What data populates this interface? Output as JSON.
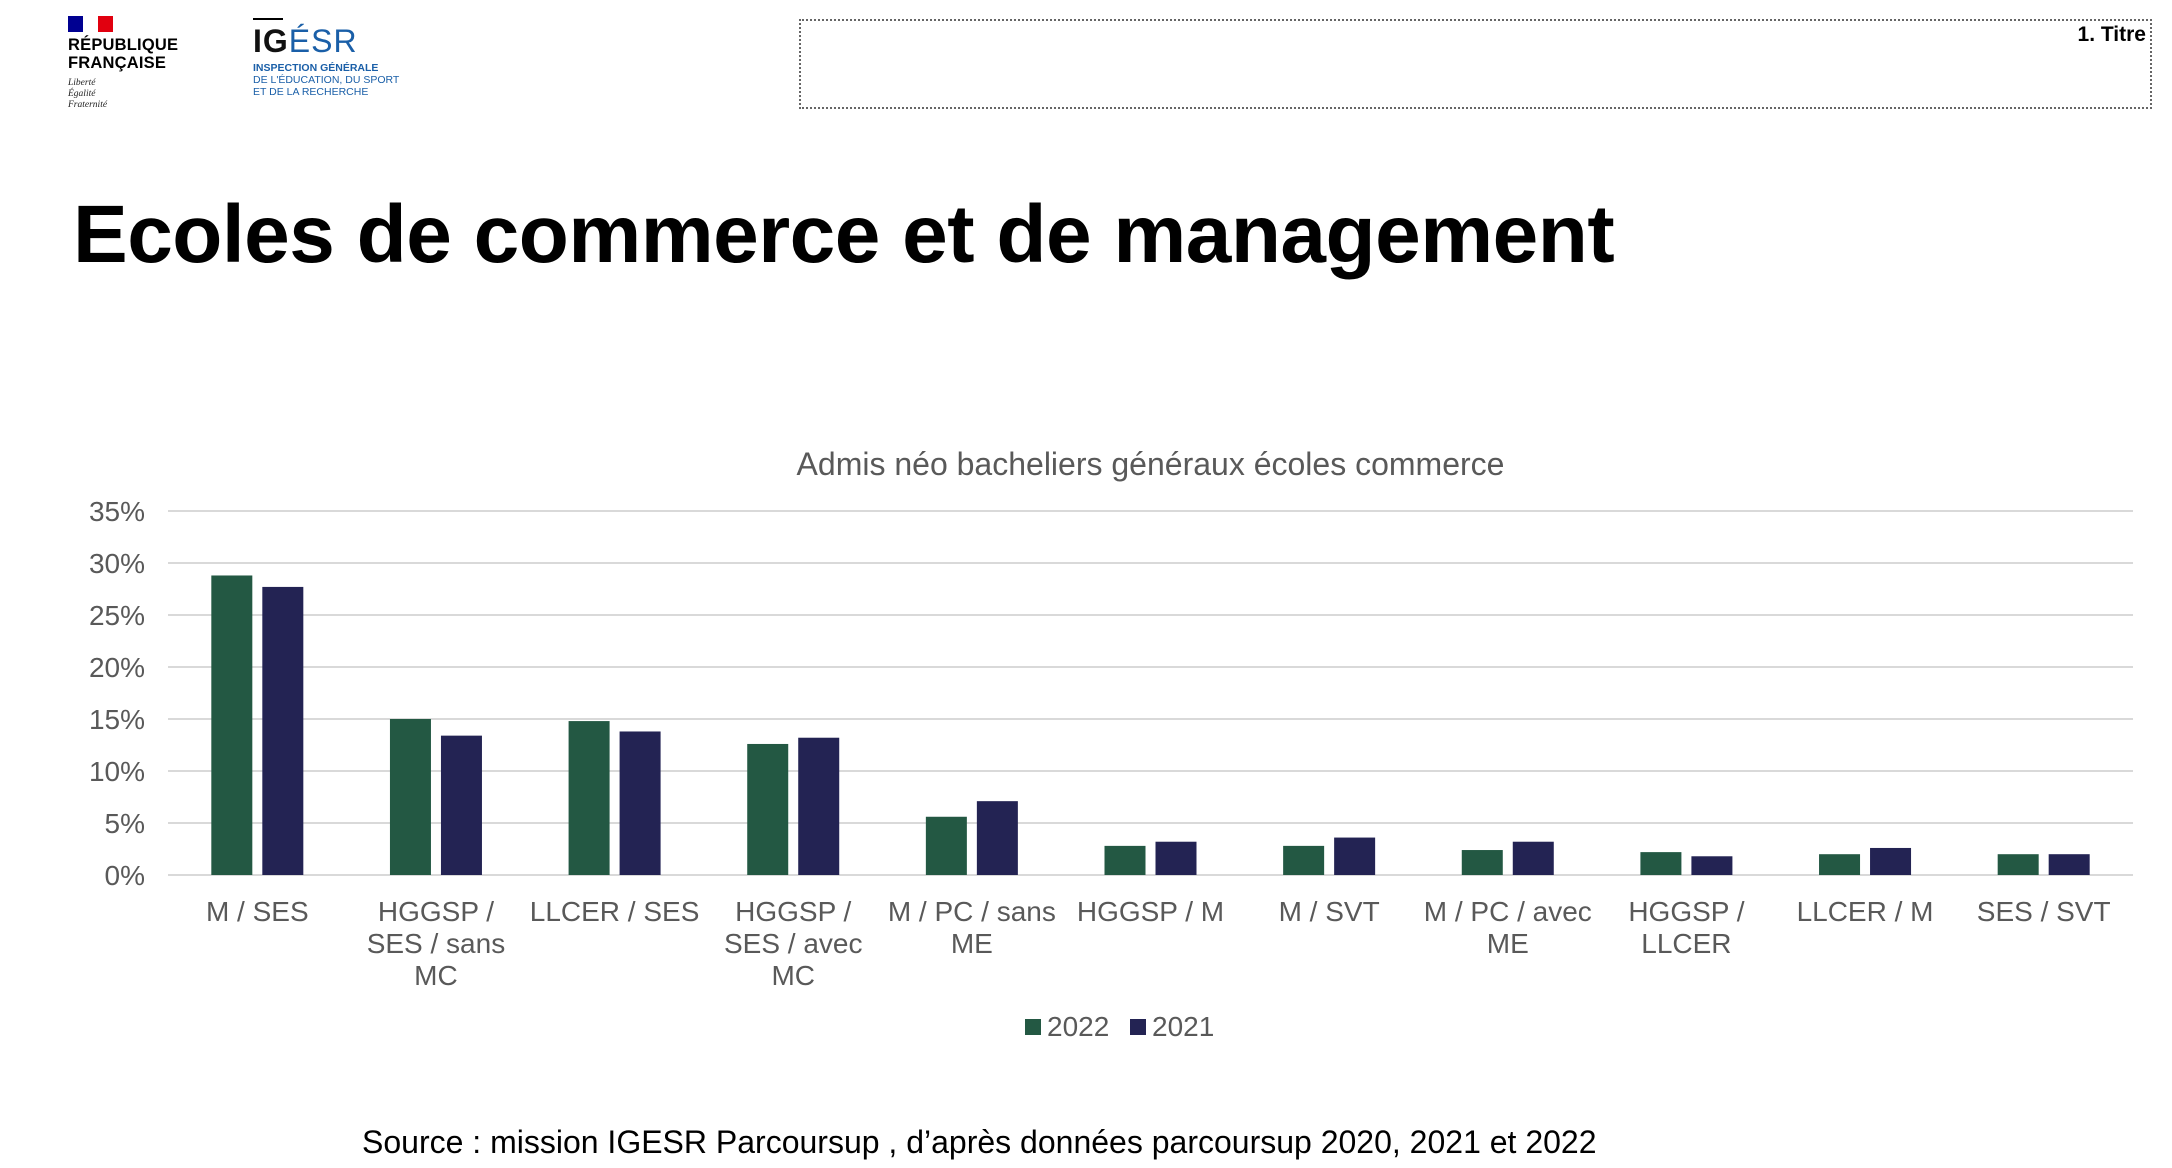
{
  "header": {
    "republique_lines": [
      "RÉPUBLIQUE",
      "FRANÇAISE"
    ],
    "motto_lines": [
      "Liberté",
      "Égalité",
      "Fraternité"
    ],
    "igesr_logo": "IGÉSR",
    "igesr_sub_lines": [
      "INSPECTION GÉNÉRALE",
      "DE L'ÉDUCATION, DU SPORT",
      "ET DE LA RECHERCHE"
    ],
    "titre_label": "1. Titre"
  },
  "page_title": "Ecoles de commerce et de management",
  "source": "Source : mission IGESR Parcoursup , d’après données parcoursup 2020, 2021 et 2022",
  "colors": {
    "flag_blue": "#000091",
    "flag_white": "#ffffff",
    "flag_red": "#e1000f",
    "igesr_blue": "#1a5fa8",
    "grid": "#d9d9d9",
    "axis_text": "#595959"
  },
  "chart_data": {
    "type": "bar",
    "title": "Admis néo bacheliers généraux écoles commerce",
    "xlabel": "",
    "ylabel": "",
    "ylim": [
      0,
      0.35
    ],
    "yticks": [
      "0%",
      "5%",
      "10%",
      "15%",
      "20%",
      "25%",
      "30%",
      "35%"
    ],
    "grid": true,
    "legend_position": "bottom",
    "categories": [
      [
        "M / SES"
      ],
      [
        "HGGSP /",
        "SES / sans",
        "MC"
      ],
      [
        "LLCER / SES"
      ],
      [
        "HGGSP /",
        "SES / avec",
        "MC"
      ],
      [
        "M / PC / sans",
        "ME"
      ],
      [
        "HGGSP / M"
      ],
      [
        "M / SVT"
      ],
      [
        "M / PC / avec",
        "ME"
      ],
      [
        "HGGSP /",
        "LLCER"
      ],
      [
        "LLCER / M"
      ],
      [
        "SES / SVT"
      ]
    ],
    "series": [
      {
        "name": "2022",
        "color": "#235843",
        "values": [
          0.288,
          0.15,
          0.148,
          0.126,
          0.056,
          0.028,
          0.028,
          0.024,
          0.022,
          0.02,
          0.02
        ]
      },
      {
        "name": "2021",
        "color": "#232353",
        "values": [
          0.277,
          0.134,
          0.138,
          0.132,
          0.071,
          0.032,
          0.036,
          0.032,
          0.018,
          0.026,
          0.02
        ]
      }
    ]
  }
}
